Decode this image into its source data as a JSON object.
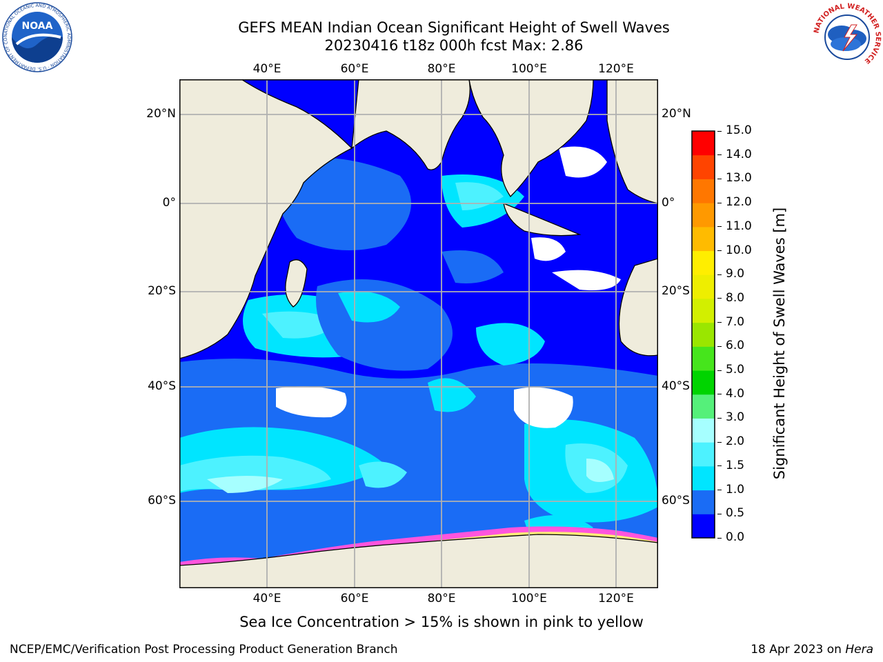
{
  "title": {
    "line1": "GEFS MEAN Indian Ocean Significant Height of Swell Waves",
    "line2": "20230416 t18z 000h fcst   Max: 2.86"
  },
  "map": {
    "lon_range": [
      20,
      129
    ],
    "lat_range": [
      -73,
      28
    ],
    "lon_ticks": [
      "40°E",
      "60°E",
      "80°E",
      "100°E",
      "120°E"
    ],
    "lat_ticks": [
      "20°N",
      "0°",
      "20°S",
      "40°S",
      "60°S"
    ],
    "gridlines": true
  },
  "colorbar": {
    "title": "Significant Height of Swell Waves [m]",
    "labels": [
      "0.0",
      "0.5",
      "1.0",
      "1.5",
      "2.0",
      "3.0",
      "4.0",
      "5.0",
      "6.0",
      "7.0",
      "8.0",
      "9.0",
      "10.0",
      "11.0",
      "12.0",
      "13.0",
      "14.0",
      "15.0"
    ],
    "colors": [
      "#0000ff",
      "#1a6cf5",
      "#00e5ff",
      "#4df2ff",
      "#a6ffff",
      "#55f07a",
      "#00d400",
      "#46e51c",
      "#9ae600",
      "#d2ef00",
      "#eeee00",
      "#ffee00",
      "#ffbb00",
      "#ff9900",
      "#ff7700",
      "#ff4400",
      "#ff0000"
    ]
  },
  "colors": {
    "land": "#efecdc",
    "ice_free_white": "#ffffff",
    "sea_ice_pink": "#ff55dd",
    "grid": "#b0b0b0"
  },
  "logos": {
    "noaa": "NOAA",
    "noaa_ring": "NATIONAL OCEANIC AND ATMOSPHERIC ADMINISTRATION · U.S. DEPARTMENT OF COMMERCE",
    "nws_ring": "NATIONAL WEATHER SERVICE"
  },
  "footer": {
    "note": "Sea Ice Concentration > 15% is shown in pink to yellow",
    "left": "NCEP/EMC/Verification Post Processing Product Generation Branch",
    "right_prefix": "18 Apr 2023 on",
    "right_host": "Hera"
  }
}
